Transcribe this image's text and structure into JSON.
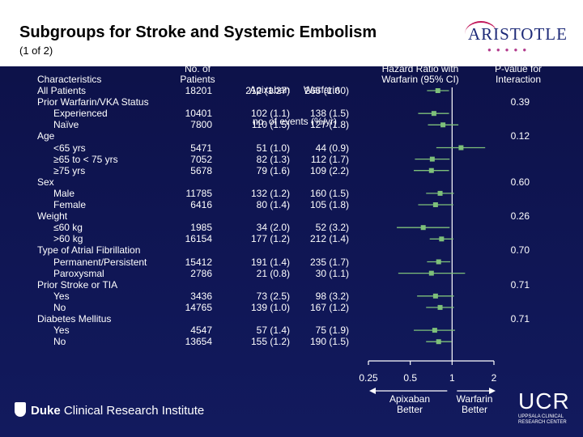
{
  "slide": {
    "title": "Subgroups for Stroke and Systemic Embolism",
    "subtitle": "(1 of 2)",
    "logo_text": "ARISTOTLE",
    "footer_left": {
      "bold": "Duke",
      "rest": " Clinical Research Institute"
    },
    "footer_right": {
      "big": "UCR",
      "small": "UPPSALA CLINICAL RESEARCH CENTER"
    }
  },
  "colors": {
    "background": "#0f1450",
    "marker": "#7ec07a",
    "text": "#ffffff"
  },
  "chart_data": {
    "type": "table",
    "title": "Subgroups for Stroke and Systemic Embolism",
    "columns": {
      "characteristics": "Characteristics",
      "patients": [
        "No. of",
        "Patients"
      ],
      "events": [
        "Apixaban     Warfarin",
        "no. of events (%/yr)"
      ],
      "hr": [
        "Hazard Ratio with",
        "Warfarin (95% CI)"
      ],
      "p": [
        "P-value for",
        "Interaction"
      ]
    },
    "x_axis": {
      "scale": "log",
      "ticks": [
        0.25,
        0.5,
        1,
        2
      ],
      "tick_labels": [
        "0.25",
        "0.5",
        "1",
        "2"
      ],
      "range": [
        0.25,
        2
      ],
      "reference": 1
    },
    "direction_labels": {
      "left": [
        "Apixaban",
        "Better"
      ],
      "right": [
        "Warfarin",
        "Better"
      ]
    },
    "rows": [
      {
        "label": "All Patients",
        "indent": 0,
        "n": "18201",
        "apixaban": "212 (1.27)",
        "warfarin": "265 (1.60)",
        "hr": 0.79,
        "lo": 0.66,
        "hi": 0.95,
        "p": ""
      },
      {
        "label": "Prior Warfarin/VKA Status",
        "indent": 0,
        "n": "",
        "apixaban": "",
        "warfarin": "",
        "p": "0.39"
      },
      {
        "label": "Experienced",
        "indent": 1,
        "n": "10401",
        "apixaban": "102 (1.1)",
        "warfarin": "138 (1.5)",
        "hr": 0.74,
        "lo": 0.57,
        "hi": 0.95,
        "p": ""
      },
      {
        "label": "Naïve",
        "indent": 1,
        "n": "7800",
        "apixaban": "110 (1.5)",
        "warfarin": "127 (1.8)",
        "hr": 0.86,
        "lo": 0.67,
        "hi": 1.11,
        "p": ""
      },
      {
        "label": "Age",
        "indent": 0,
        "n": "",
        "apixaban": "",
        "warfarin": "",
        "p": "0.12"
      },
      {
        "label": "<65 yrs",
        "indent": 1,
        "n": "5471",
        "apixaban": "51 (1.0)",
        "warfarin": "44 (0.9)",
        "hr": 1.16,
        "lo": 0.77,
        "hi": 1.73,
        "p": ""
      },
      {
        "label": "≥65 to < 75 yrs",
        "indent": 1,
        "n": "7052",
        "apixaban": "82 (1.3)",
        "warfarin": "112 (1.7)",
        "hr": 0.72,
        "lo": 0.54,
        "hi": 0.96,
        "p": ""
      },
      {
        "label": "≥75 yrs",
        "indent": 1,
        "n": "5678",
        "apixaban": "79 (1.6)",
        "warfarin": "109 (2.2)",
        "hr": 0.71,
        "lo": 0.53,
        "hi": 0.95,
        "p": ""
      },
      {
        "label": "Sex",
        "indent": 0,
        "n": "",
        "apixaban": "",
        "warfarin": "",
        "p": "0.60"
      },
      {
        "label": "Male",
        "indent": 1,
        "n": "11785",
        "apixaban": "132 (1.2)",
        "warfarin": "160 (1.5)",
        "hr": 0.82,
        "lo": 0.65,
        "hi": 1.03,
        "p": ""
      },
      {
        "label": "Female",
        "indent": 1,
        "n": "6416",
        "apixaban": "80 (1.4)",
        "warfarin": "105 (1.8)",
        "hr": 0.76,
        "lo": 0.57,
        "hi": 1.02,
        "p": ""
      },
      {
        "label": "Weight",
        "indent": 0,
        "n": "",
        "apixaban": "",
        "warfarin": "",
        "p": "0.26"
      },
      {
        "label": "≤60 kg",
        "indent": 1,
        "n": "1985",
        "apixaban": "34 (2.0)",
        "warfarin": "52 (3.2)",
        "hr": 0.62,
        "lo": 0.4,
        "hi": 0.96,
        "p": ""
      },
      {
        "label": ">60 kg",
        "indent": 1,
        "n": "16154",
        "apixaban": "177 (1.2)",
        "warfarin": "212 (1.4)",
        "hr": 0.84,
        "lo": 0.69,
        "hi": 1.02,
        "p": ""
      },
      {
        "label": "Type of Atrial Fibrillation",
        "indent": 0,
        "n": "",
        "apixaban": "",
        "warfarin": "",
        "p": "0.70"
      },
      {
        "label": "Permanent/Persistent",
        "indent": 1,
        "n": "15412",
        "apixaban": "191 (1.4)",
        "warfarin": "235 (1.7)",
        "hr": 0.8,
        "lo": 0.66,
        "hi": 0.97,
        "p": ""
      },
      {
        "label": "Paroxysmal",
        "indent": 1,
        "n": "2786",
        "apixaban": "21 (0.8)",
        "warfarin": "30 (1.1)",
        "hr": 0.71,
        "lo": 0.41,
        "hi": 1.24,
        "p": ""
      },
      {
        "label": "Prior Stroke or TIA",
        "indent": 0,
        "n": "",
        "apixaban": "",
        "warfarin": "",
        "p": "0.71"
      },
      {
        "label": "Yes",
        "indent": 1,
        "n": "3436",
        "apixaban": "73 (2.5)",
        "warfarin": "98 (3.2)",
        "hr": 0.76,
        "lo": 0.56,
        "hi": 1.03,
        "p": ""
      },
      {
        "label": "No",
        "indent": 1,
        "n": "14765",
        "apixaban": "139 (1.0)",
        "warfarin": "167 (1.2)",
        "hr": 0.82,
        "lo": 0.65,
        "hi": 1.03,
        "p": ""
      },
      {
        "label": "Diabetes Mellitus",
        "indent": 0,
        "n": "",
        "apixaban": "",
        "warfarin": "",
        "p": "0.71"
      },
      {
        "label": "Yes",
        "indent": 1,
        "n": "4547",
        "apixaban": "57 (1.4)",
        "warfarin": "75 (1.9)",
        "hr": 0.75,
        "lo": 0.53,
        "hi": 1.05,
        "p": ""
      },
      {
        "label": "No",
        "indent": 1,
        "n": "13654",
        "apixaban": "155 (1.2)",
        "warfarin": "190 (1.5)",
        "hr": 0.8,
        "lo": 0.65,
        "hi": 0.99,
        "p": ""
      }
    ]
  }
}
